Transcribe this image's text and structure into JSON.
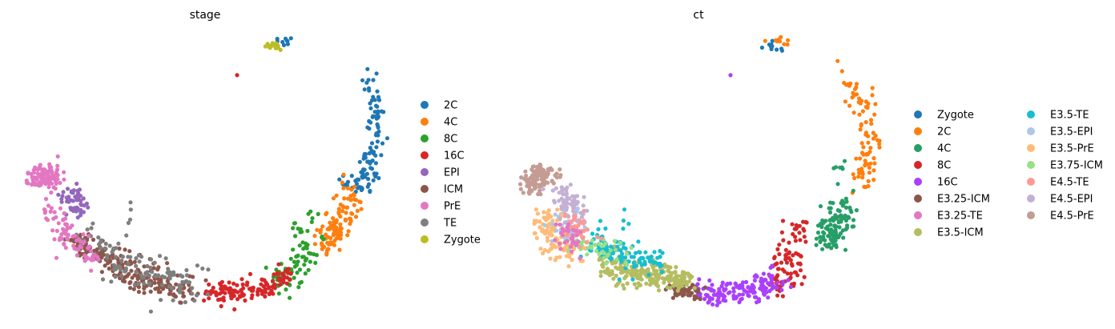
{
  "chart_data": [
    {
      "type": "scatter",
      "title": "stage",
      "xlabel": "",
      "ylabel": "",
      "grid": false,
      "legend_placement": "right",
      "legend": [
        {
          "name": "2C",
          "color": "#1f77b4"
        },
        {
          "name": "4C",
          "color": "#ff7f0e"
        },
        {
          "name": "8C",
          "color": "#2ca02c"
        },
        {
          "name": "16C",
          "color": "#d62728"
        },
        {
          "name": "EPI",
          "color": "#9467bd"
        },
        {
          "name": "ICM",
          "color": "#8c564b"
        },
        {
          "name": "PrE",
          "color": "#e377c2"
        },
        {
          "name": "TE",
          "color": "#7f7f7f"
        },
        {
          "name": "Zygote",
          "color": "#bcbd22"
        }
      ]
    },
    {
      "type": "scatter",
      "title": "ct",
      "xlabel": "",
      "ylabel": "",
      "grid": false,
      "legend_placement": "right",
      "legend": [
        {
          "name": "Zygote",
          "color": "#1f77b4"
        },
        {
          "name": "2C",
          "color": "#ff7f0e"
        },
        {
          "name": "4C",
          "color": "#279e68"
        },
        {
          "name": "8C",
          "color": "#d62728"
        },
        {
          "name": "16C",
          "color": "#aa40fc"
        },
        {
          "name": "E3.25-ICM",
          "color": "#8c564b"
        },
        {
          "name": "E3.25-TE",
          "color": "#e377c2"
        },
        {
          "name": "E3.5-ICM",
          "color": "#b5bd61"
        },
        {
          "name": "E3.5-TE",
          "color": "#17becf"
        },
        {
          "name": "E3.5-EPI",
          "color": "#aec7e8"
        },
        {
          "name": "E3.5-PrE",
          "color": "#ffbb78"
        },
        {
          "name": "E3.75-ICM",
          "color": "#98df8a"
        },
        {
          "name": "E4.5-TE",
          "color": "#ff9896"
        },
        {
          "name": "E4.5-EPI",
          "color": "#c5b0d5"
        },
        {
          "name": "E4.5-PrE",
          "color": "#c49c94"
        }
      ]
    }
  ]
}
